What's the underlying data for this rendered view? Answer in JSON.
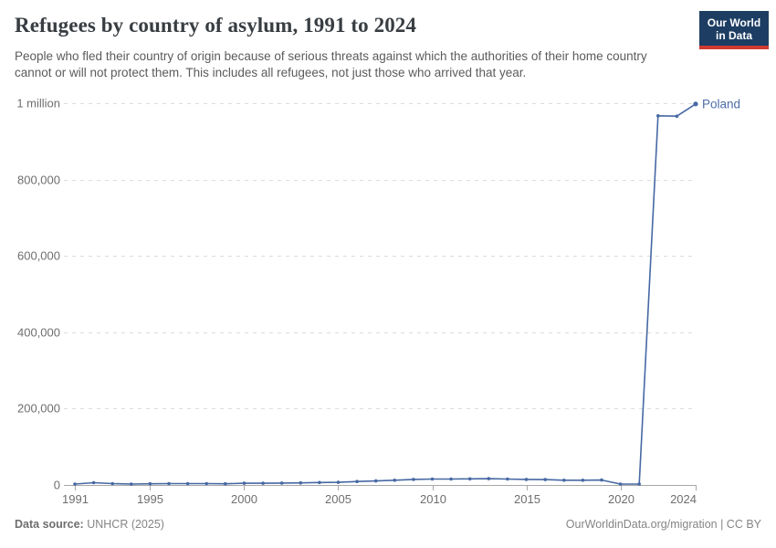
{
  "header": {
    "title": "Refugees by country of asylum, 1991 to 2024",
    "subtitle": "People who fled their country of origin because of serious threats against which the authorities of their home country cannot or will not protect them. This includes all refugees, not just those who arrived that year.",
    "logo": {
      "line1": "Our World",
      "line2": "in Data",
      "bg_color": "#1d3d63",
      "accent_color": "#cf3a31"
    }
  },
  "chart_data": {
    "type": "line",
    "title": "Refugees by country of asylum, 1991 to 2024",
    "xlabel": "",
    "ylabel": "",
    "x": [
      1991,
      1992,
      1993,
      1994,
      1995,
      1996,
      1997,
      1998,
      1999,
      2000,
      2001,
      2002,
      2003,
      2004,
      2005,
      2006,
      2007,
      2008,
      2009,
      2010,
      2011,
      2012,
      2013,
      2014,
      2015,
      2016,
      2017,
      2018,
      2019,
      2020,
      2021,
      2022,
      2023,
      2024
    ],
    "series": [
      {
        "name": "Poland",
        "color": "#4668a3",
        "label_color": "#4c6ea8",
        "values": [
          2500,
          6000,
          3500,
          2500,
          3000,
          3500,
          3500,
          3500,
          3000,
          4500,
          4500,
          5000,
          5500,
          6500,
          7000,
          9000,
          10500,
          12500,
          14500,
          15500,
          15500,
          16000,
          16500,
          15500,
          14500,
          14000,
          12500,
          12500,
          13000,
          2500,
          2500,
          967000,
          966000,
          998000
        ]
      }
    ],
    "ylim": [
      0,
      1000000
    ],
    "yticks": [
      {
        "value": 0,
        "label": "0"
      },
      {
        "value": 200000,
        "label": "200,000"
      },
      {
        "value": 400000,
        "label": "400,000"
      },
      {
        "value": 600000,
        "label": "600,000"
      },
      {
        "value": 800000,
        "label": "800,000"
      },
      {
        "value": 1000000,
        "label": "1 million"
      }
    ],
    "xticks": [
      1991,
      1995,
      2000,
      2005,
      2010,
      2015,
      2020,
      2024
    ],
    "grid": "horizontal-dashed",
    "legend_position": "end-of-line-label",
    "colors": {
      "gridline": "#dcdcdc",
      "axis": "#a8a8a8",
      "tick_text": "#6e6e6e"
    }
  },
  "footer": {
    "source_label": "Data source:",
    "source_value": " UNHCR (2025)",
    "credit": "OurWorldinData.org/migration | CC BY"
  }
}
